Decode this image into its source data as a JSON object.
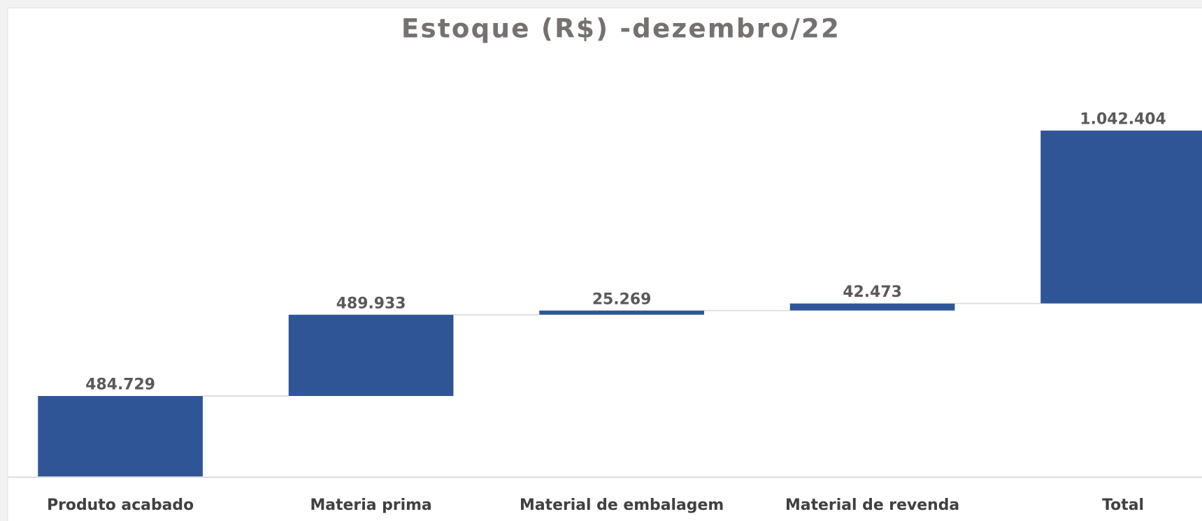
{
  "chart_data": {
    "type": "waterfall",
    "title": "Estoque (R$) -dezembro/22",
    "categories": [
      "Produto acabado",
      "Materia prima",
      "Material de embalagem",
      "Material de revenda",
      "Total"
    ],
    "values": [
      484729,
      489933,
      25269,
      42473,
      1042404
    ],
    "value_labels": [
      "484.729",
      "489.933",
      "25.269",
      "42.473",
      "1.042.404"
    ],
    "color": "#2f5597",
    "ylim": [
      0,
      2400000
    ]
  }
}
